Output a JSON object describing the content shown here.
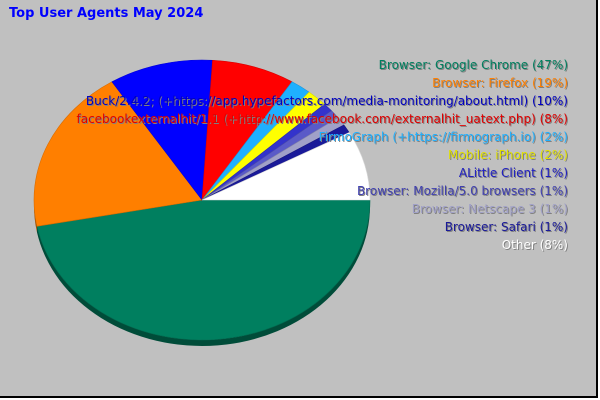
{
  "chart_data": {
    "type": "pie",
    "title": "Top User Agents May 2024",
    "legend_position": "right",
    "slices": [
      {
        "label": "Browser: Google Chrome (47%)",
        "value": 47,
        "color": "#007f5f"
      },
      {
        "label": "Browser: Firefox (19%)",
        "value": 19,
        "color": "#ff7f00"
      },
      {
        "label": "Buck/2.4.2; (+https://app.hypefactors.com/media-monitoring/about.html) (10%)",
        "value": 10,
        "color": "#0000ff"
      },
      {
        "label": "facebookexternalhit/1.1 (+http://www.facebook.com/externalhit_uatext.php) (8%)",
        "value": 8,
        "color": "#ff0000"
      },
      {
        "label": "FirmoGraph (+https://firmograph.io) (2%)",
        "value": 2,
        "color": "#1fb0ff"
      },
      {
        "label": "Mobile: iPhone (2%)",
        "value": 2,
        "color": "#ffff00"
      },
      {
        "label": "ALittle Client (1%)",
        "value": 1,
        "color": "#3333cc"
      },
      {
        "label": "Browser: Mozilla/5.0 browsers (1%)",
        "value": 1,
        "color": "#5a5ac8"
      },
      {
        "label": "Browser: Netscape 3 (1%)",
        "value": 1,
        "color": "#a0a0c8"
      },
      {
        "label": "Browser: Safari (1%)",
        "value": 1,
        "color": "#1a1a99"
      },
      {
        "label": "Other (8%)",
        "value": 8,
        "color": "#ffffff"
      }
    ],
    "legend_colors": [
      "#007f5f",
      "#ff7f00",
      "#0000c0",
      "#e00000",
      "#1fb0ff",
      "#e0e000",
      "#2020c0",
      "#4040b0",
      "#a0a0c8",
      "#1a1a99",
      "#ffffff"
    ]
  }
}
